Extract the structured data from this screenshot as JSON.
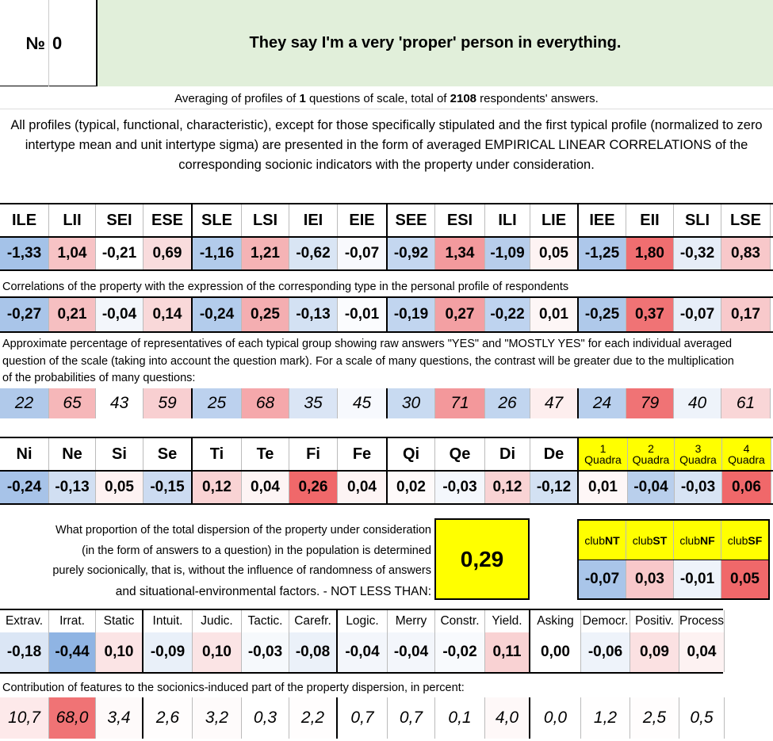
{
  "header": {
    "number_label": "№",
    "number": "0",
    "question": "They say I'm a very 'proper' person in everything."
  },
  "summary": {
    "p1": "Averaging of profiles of ",
    "questions": "1",
    "p2": " questions of scale, total of ",
    "respondents": "2108",
    "p3": " respondents' answers.",
    "paragraph": "All profiles (typical, functional, characteristic), except for those specifically stipulated and the first typical profile (normalized to zero intertype mean and unit intertype sigma) are presented in the form of averaged EMPIRICAL LINEAR CORRELATIONS of the corresponding socionic indicators with the property under consideration."
  },
  "types": {
    "headers": [
      "ILE",
      "LII",
      "SEI",
      "ESE",
      "SLE",
      "LSI",
      "IEI",
      "EIE",
      "SEE",
      "ESI",
      "ILI",
      "LIE",
      "IEE",
      "EII",
      "SLI",
      "LSE"
    ],
    "profile": [
      "-1,33",
      "1,04",
      "-0,21",
      "0,69",
      "-1,16",
      "1,21",
      "-0,62",
      "-0,07",
      "-0,92",
      "1,34",
      "-1,09",
      "0,05",
      "-1,25",
      "1,80",
      "-0,32",
      "0,83"
    ],
    "profile_colors": [
      "#a4c2e8",
      "#f7c3c5",
      "#ffffff",
      "#f9dcdd",
      "#b2cbeb",
      "#f5b3b5",
      "#d9e5f4",
      "#f8f9fd",
      "#c4d7f0",
      "#f39a9d",
      "#b7cdeb",
      "#fdf3f3",
      "#adc7ea",
      "#f06e70",
      "#e6edf7",
      "#f8c8ca"
    ],
    "correlation_note": "Correlations of the property with the expression of the corresponding type in the personal profile of respondents",
    "correlations": [
      "-0,27",
      "0,21",
      "-0,04",
      "0,14",
      "-0,24",
      "0,25",
      "-0,13",
      "-0,01",
      "-0,19",
      "0,27",
      "-0,22",
      "0,01",
      "-0,25",
      "0,37",
      "-0,07",
      "0,17"
    ],
    "correlation_colors": [
      "#a9c5e9",
      "#f6bfc1",
      "#f3f6fb",
      "#f9d8d9",
      "#b3ccec",
      "#f4aeb1",
      "#d3e1f3",
      "#fbfcfe",
      "#c1d5ef",
      "#f3a0a3",
      "#bed3ef",
      "#fdf6f6",
      "#afc9ea",
      "#f07375",
      "#e7eef8",
      "#f8c9cb"
    ],
    "percent_note": "Approximate percentage of representatives of each typical group showing raw answers \"YES\" and \"MOSTLY YES\" for each individual averaged question of the scale (taking into account the question mark). For a scale of many questions, the contrast will be greater due to the multiplication of the probabilities of many questions:",
    "percents": [
      "22",
      "65",
      "43",
      "59",
      "25",
      "68",
      "35",
      "45",
      "30",
      "71",
      "26",
      "47",
      "24",
      "79",
      "40",
      "61"
    ],
    "percent_colors": [
      "#b0c9ea",
      "#f6b7b9",
      "#ffffff",
      "#f8cfd1",
      "#bcd1ee",
      "#f5a8ab",
      "#dae5f5",
      "#f7f9fd",
      "#c8daf1",
      "#f3989b",
      "#c1d5ef",
      "#fdeeee",
      "#b8cfed",
      "#f07375",
      "#eef3fa",
      "#f9d6d7"
    ]
  },
  "functions": {
    "headers": [
      "Ni",
      "Ne",
      "Si",
      "Se",
      "Ti",
      "Te",
      "Fi",
      "Fe",
      "Qi",
      "Qe",
      "Di",
      "De"
    ],
    "values": [
      "-0,24",
      "-0,13",
      "0,05",
      "-0,15",
      "0,12",
      "0,04",
      "0,26",
      "0,04",
      "0,02",
      "-0,03",
      "0,12",
      "-0,12"
    ],
    "colors": [
      "#a7c3e8",
      "#d1dff2",
      "#fdf2f2",
      "#ccdbf1",
      "#f9d3d4",
      "#fdf4f4",
      "#f0686a",
      "#fdf4f4",
      "#fefafa",
      "#f4f7fc",
      "#f9d3d4",
      "#d3e1f3"
    ],
    "quadra_numbers": [
      "1",
      "2",
      "3",
      "4"
    ],
    "quadra_label": "Quadra",
    "quadra_values": [
      "0,01",
      "-0,04",
      "-0,03",
      "0,06"
    ],
    "quadra_colors": [
      "#fef7f7",
      "#b9cfec",
      "#d8e4f4",
      "#f0686a"
    ]
  },
  "dispersion": {
    "l1": "What proportion of the total dispersion of the property under consideration",
    "l2": "(in the form of answers to a question) in the population is determined",
    "l3": "purely socionically, that is, without the influence of randomness of answers",
    "l4": "and situational-environmental factors. - NOT LESS THAN:",
    "value": "0,29"
  },
  "clubs": {
    "prefix": "club",
    "names": [
      "NT",
      "ST",
      "NF",
      "SF"
    ],
    "values": [
      "-0,07",
      "0,03",
      "-0,01",
      "0,05"
    ],
    "colors": [
      "#a9c5e9",
      "#f8c8ca",
      "#eef3fa",
      "#f0686a"
    ]
  },
  "traits": {
    "headers": [
      "Extrav.",
      "Irrat.",
      "Static",
      "Intuit.",
      "Judic.",
      "Tactic.",
      "Carefr.",
      "Logic.",
      "Merry",
      "Constr.",
      "Yield.",
      "Asking",
      "Democr.",
      "Positiv.",
      "Process"
    ],
    "values": [
      "-0,18",
      "-0,44",
      "0,10",
      "-0,09",
      "0,10",
      "-0,03",
      "-0,08",
      "-0,04",
      "-0,04",
      "-0,02",
      "0,11",
      "0,00",
      "-0,06",
      "0,09",
      "0,04"
    ],
    "colors": [
      "#dbe6f5",
      "#8fb4e3",
      "#fbe4e5",
      "#e9f0f9",
      "#fbe4e5",
      "#f6f9fc",
      "#ebf1f9",
      "#f3f6fb",
      "#f3f6fb",
      "#f8fafd",
      "#f9d2d3",
      "#ffffff",
      "#eef3fa",
      "#fbe1e2",
      "#fdf2f2"
    ],
    "contribution_note": "Contribution of features to the sociomics-induced part of the property dispersion, in percent:",
    "contributions": [
      "10,7",
      "68,0",
      "3,4",
      "2,6",
      "3,2",
      "0,3",
      "2,2",
      "0,7",
      "0,7",
      "0,1",
      "4,0",
      "0,0",
      "1,2",
      "2,5",
      "0,5"
    ],
    "contribution_colors": [
      "#fde9ea",
      "#f07375",
      "#fefafa",
      "#fffdfd",
      "#fefbfb",
      "#ffffff",
      "#fffdfd",
      "#ffffff",
      "#ffffff",
      "#ffffff",
      "#fef8f8",
      "#ffffff",
      "#fffefe",
      "#fffdfd",
      "#ffffff"
    ]
  }
}
